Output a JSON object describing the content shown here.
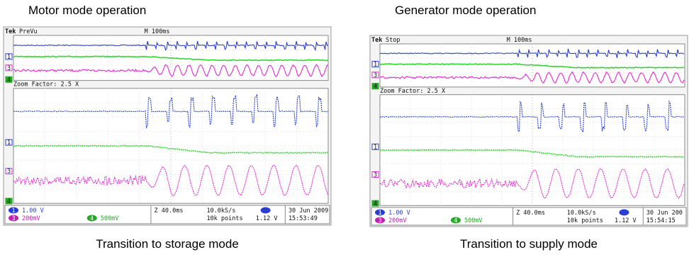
{
  "panels": [
    {
      "caption_top": "Motor mode operation",
      "caption_bottom": "Transition to storage mode",
      "scope": {
        "brand": "Tek",
        "status": "PreVu",
        "timebase": "M 100ms",
        "zoom": "Zoom Factor: 2.5 X",
        "markers": [
          "1",
          "3",
          "4"
        ],
        "ch1_badge": "1",
        "ch1": "1.00 V",
        "ch3_badge": "3",
        "ch3": "200mV",
        "ch4_badge": "4",
        "ch4": "500mV",
        "zoom_time": "Z 40.0ms",
        "sample_rate": "10.0kS/s",
        "points": "10k points",
        "trigger_level": "1.12 V",
        "date": "30 Jun  2009",
        "time": "15:53:49"
      }
    },
    {
      "caption_top": "Generator mode operation",
      "caption_bottom": "Transition to supply mode",
      "scope": {
        "brand": "Tek",
        "status": "Stop",
        "timebase": "M 100ms",
        "zoom": "Zoom Factor: 2.5 X",
        "markers": [
          "1",
          "3",
          "4"
        ],
        "ch1_badge": "1",
        "ch1": "1.00 V",
        "ch3_badge": "3",
        "ch3": "200mV",
        "ch4_badge": "4",
        "ch4": "500mV",
        "zoom_time": "Z 40.0ms",
        "sample_rate": "10.0kS/s",
        "points": "10k points",
        "trigger_level": "1.12 V",
        "date": "30 Jun  200",
        "time": "15:54:15"
      }
    }
  ]
}
